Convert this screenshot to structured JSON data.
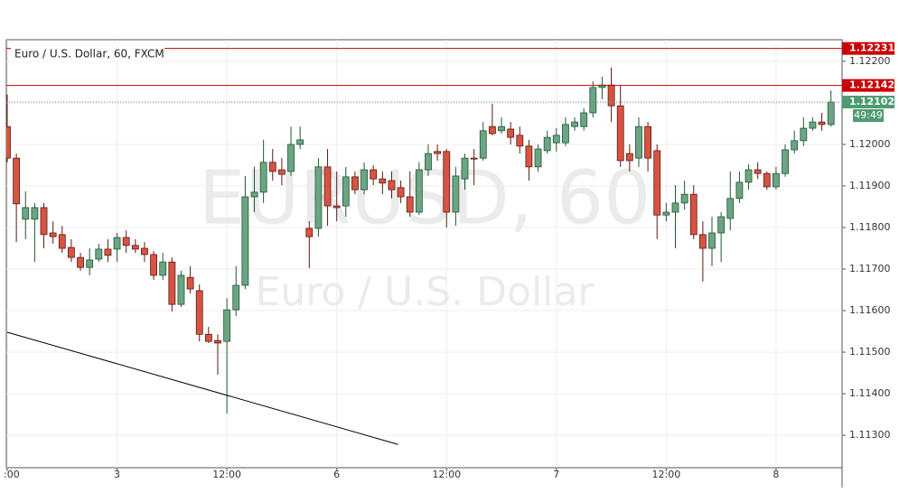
{
  "chart_data": {
    "type": "candlestick",
    "title": "Euro / U.S. Dollar, 60, FXCM",
    "watermark": "EURUSD, 60",
    "watermark_subtitle": "Euro / U.S. Dollar",
    "categories": [
      ":00",
      null,
      null,
      null,
      null,
      null,
      null,
      null,
      null,
      null,
      null,
      null,
      "3",
      null,
      null,
      null,
      null,
      null,
      null,
      null,
      null,
      null,
      null,
      null,
      "12:00",
      null,
      null,
      null,
      null,
      null,
      null,
      null,
      null,
      null,
      null,
      null,
      "6",
      null,
      null,
      null,
      null,
      null,
      null,
      null,
      null,
      null,
      null,
      null,
      "12:00",
      null,
      null,
      null,
      null,
      null,
      null,
      null,
      null,
      null,
      null,
      null,
      "7",
      null,
      null,
      null,
      null,
      null,
      null,
      null,
      null,
      null,
      null,
      null,
      "12:00",
      null,
      null,
      null,
      null,
      null,
      null,
      null,
      null,
      null,
      null,
      null,
      "8",
      null,
      null,
      null,
      null,
      null,
      null
    ],
    "open": [
      1.12043,
      1.11967,
      1.1182,
      1.1182,
      1.11848,
      1.11787,
      1.11783,
      1.11752,
      1.11728,
      1.11704,
      1.11724,
      1.11748,
      1.11748,
      1.11776,
      1.11757,
      1.1175,
      1.11735,
      1.11685,
      1.11717,
      1.11615,
      1.1168,
      1.11648,
      1.11543,
      1.11528,
      1.11526,
      1.11602,
      1.11661,
      1.11874,
      1.11885,
      1.11957,
      1.11939,
      1.11935,
      1.12,
      1.11798,
      1.11798,
      1.11946,
      1.11852,
      1.11852,
      1.11922,
      1.11891,
      1.11939,
      1.11917,
      1.11913,
      1.11896,
      1.11874,
      1.11837,
      1.11939,
      1.11983,
      1.11983,
      1.11837,
      1.11917,
      1.11967,
      1.11967,
      1.12043,
      1.12033,
      1.12037,
      1.12022,
      1.11996,
      1.11946,
      1.11985,
      1.12004,
      1.12004,
      1.12043,
      1.12043,
      1.12076,
      1.12137,
      1.12143,
      1.12093,
      1.11978,
      1.11967,
      1.12043,
      1.11985,
      1.1183,
      1.11837,
      1.11859,
      1.1188,
      1.11783,
      1.1175,
      1.11787,
      1.11822,
      1.1187,
      1.11909,
      1.11939,
      1.1193,
      1.11898,
      1.1193,
      1.11987,
      1.12009,
      1.12039,
      1.12054,
      1.12048
    ],
    "high": [
      1.1212,
      1.11978,
      1.11887,
      1.11859,
      1.11859,
      1.11815,
      1.11804,
      1.11772,
      1.11739,
      1.1175,
      1.11761,
      1.11772,
      1.11787,
      1.11793,
      1.11772,
      1.11765,
      1.11743,
      1.11739,
      1.11728,
      1.11696,
      1.11707,
      1.11663,
      1.11561,
      1.11543,
      1.1163,
      1.11707,
      1.11924,
      1.11946,
      1.12011,
      1.11989,
      1.11967,
      1.12043,
      1.12043,
      1.11815,
      1.11967,
      1.11989,
      1.11935,
      1.11946,
      1.11935,
      1.11957,
      1.1195,
      1.11935,
      1.11935,
      1.11913,
      1.11935,
      1.11957,
      1.12,
      1.12,
      1.11989,
      1.11946,
      1.11978,
      1.11989,
      1.12054,
      1.12098,
      1.12065,
      1.12054,
      1.12043,
      1.12011,
      1.12,
      1.12033,
      1.12039,
      1.12065,
      1.12065,
      1.12087,
      1.12152,
      1.12163,
      1.12185,
      1.12141,
      1.12,
      1.12065,
      1.12054,
      1.12,
      1.11859,
      1.11902,
      1.11913,
      1.11902,
      1.11815,
      1.11826,
      1.11837,
      1.11935,
      1.11935,
      1.11952,
      1.11957,
      1.11935,
      1.11946,
      1.12,
      1.12033,
      1.12065,
      1.12065,
      1.12076,
      1.1213
    ],
    "low": [
      1.11957,
      1.11765,
      1.11772,
      1.11717,
      1.1175,
      1.11761,
      1.11739,
      1.11717,
      1.11696,
      1.11685,
      1.11717,
      1.11717,
      1.11717,
      1.11739,
      1.11739,
      1.11717,
      1.11674,
      1.11674,
      1.11598,
      1.11609,
      1.11641,
      1.11526,
      1.11522,
      1.11446,
      1.11352,
      1.11587,
      1.11652,
      1.11837,
      1.11859,
      1.11913,
      1.11902,
      1.11924,
      1.11989,
      1.11702,
      1.11778,
      1.11804,
      1.11815,
      1.11826,
      1.1188,
      1.1188,
      1.11902,
      1.1188,
      1.1187,
      1.11859,
      1.11826,
      1.1183,
      1.11924,
      1.11961,
      1.118,
      1.11804,
      1.11891,
      1.11902,
      1.11961,
      1.12022,
      1.12026,
      1.12,
      1.11978,
      1.11913,
      1.11935,
      1.11978,
      1.11983,
      1.11996,
      1.12033,
      1.12033,
      1.12065,
      1.12109,
      1.12054,
      1.11946,
      1.11935,
      1.11946,
      1.11935,
      1.11772,
      1.11815,
      1.1175,
      1.11843,
      1.11772,
      1.1167,
      1.11707,
      1.11717,
      1.11793,
      1.11859,
      1.11891,
      1.11917,
      1.11891,
      1.11891,
      1.11922,
      1.11978,
      1.11996,
      1.12033,
      1.12033,
      1.12043
    ],
    "close": [
      1.11967,
      1.11857,
      1.11848,
      1.11848,
      1.11783,
      1.11778,
      1.1175,
      1.11728,
      1.11704,
      1.11722,
      1.11748,
      1.11733,
      1.11776,
      1.11757,
      1.11748,
      1.11735,
      1.11685,
      1.11717,
      1.11615,
      1.11685,
      1.11652,
      1.11543,
      1.11526,
      1.11522,
      1.11602,
      1.11661,
      1.11874,
      1.11885,
      1.11957,
      1.11935,
      1.11928,
      1.12,
      1.12011,
      1.11778,
      1.11946,
      1.11852,
      1.11848,
      1.11922,
      1.11891,
      1.11939,
      1.11917,
      1.11907,
      1.11891,
      1.11874,
      1.11837,
      1.11939,
      1.11978,
      1.11978,
      1.11837,
      1.11924,
      1.11967,
      1.11965,
      1.12033,
      1.12026,
      1.12043,
      1.12017,
      1.11996,
      1.11946,
      1.11989,
      1.12017,
      1.12022,
      1.12048,
      1.12054,
      1.12076,
      1.12137,
      1.12143,
      1.12093,
      1.11961,
      1.11961,
      1.12043,
      1.11967,
      1.1183,
      1.11837,
      1.11859,
      1.1188,
      1.11783,
      1.1175,
      1.11787,
      1.11826,
      1.1187,
      1.11909,
      1.11939,
      1.1193,
      1.11898,
      1.1193,
      1.11987,
      1.12009,
      1.12039,
      1.12054,
      1.12048,
      1.12102
    ],
    "up_color": "#6ba583",
    "down_color": "#d75442",
    "ylim": [
      1.11222,
      1.12252
    ],
    "yticks": [
      {
        "value": 1.113,
        "label": "1.11300"
      },
      {
        "value": 1.114,
        "label": "1.11400"
      },
      {
        "value": 1.115,
        "label": "1.11500"
      },
      {
        "value": 1.116,
        "label": "1.11600"
      },
      {
        "value": 1.117,
        "label": "1.11700"
      },
      {
        "value": 1.118,
        "label": "1.11800"
      },
      {
        "value": 1.119,
        "label": "1.11900"
      },
      {
        "value": 1.12,
        "label": "1.12000"
      },
      {
        "value": 1.121,
        "label": "1.12100"
      },
      {
        "value": 1.122,
        "label": "1.12200"
      }
    ],
    "grid": true,
    "price_lines": {
      "color": "#cc0000",
      "values": [
        1.12231,
        1.12142
      ]
    },
    "last_price": 1.12102,
    "last_price_color": "#4e9a72",
    "countdown": "49:49",
    "trendline": {
      "x": [
        0,
        42.7
      ],
      "y": [
        1.11548,
        1.11278
      ],
      "color": "#000000"
    }
  }
}
